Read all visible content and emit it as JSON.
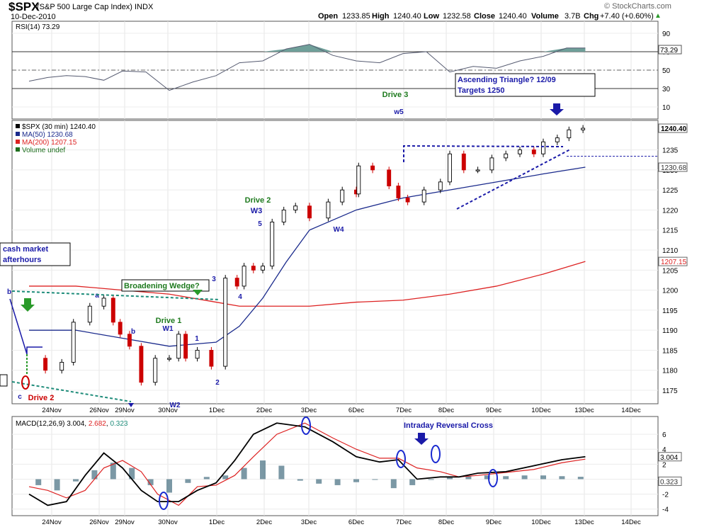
{
  "header": {
    "symbol": "$SPX",
    "description": "(S&P 500 Large Cap Index) INDX",
    "date": "10-Dec-2010",
    "open_label": "Open",
    "open_value": "1233.85",
    "high_label": "High",
    "high_value": "1240.40",
    "low_label": "Low",
    "low_value": "1232.58",
    "close_label": "Close",
    "close_value": "1240.40",
    "volume_label": "Volume",
    "volume_value": "3.7B",
    "chg_label": "Chg",
    "chg_value": "+7.40 (+0.60%)",
    "chg_arrow": "▲",
    "logo": "© StockCharts.com"
  },
  "colors": {
    "price_up": "#000000",
    "price_down": "#cc0000",
    "ma50": "#1a2a8c",
    "ma200": "#dd2222",
    "trendline_green": "#1e8c7a",
    "annotation_blue": "#1a1aa8",
    "annotation_green": "#1e7a1e",
    "annotation_red": "#cc0000",
    "rsi_fill": "#6f9f99",
    "macd_line": "#000000",
    "signal_line": "#dd2222",
    "histogram": "#5a7e8e",
    "resistance_line": "#1a1aa8"
  },
  "chart_data": [
    {
      "type": "line",
      "title": "RSI(14) 73.29",
      "indicator": "RSI(14)",
      "last_value": 73.29,
      "ylim": [
        0,
        100
      ],
      "y_ticks": [
        10,
        30,
        50,
        70,
        90
      ],
      "reference_lines": [
        30,
        50,
        70
      ],
      "x_labels": [
        "24Nov",
        "26Nov",
        "29Nov",
        "30Nov",
        "1Dec",
        "2Dec",
        "3Dec",
        "6Dec",
        "7Dec",
        "8Dec",
        "9Dec",
        "10Dec",
        "13Dec",
        "14Dec"
      ],
      "x": [
        0,
        0.4,
        0.8,
        1.2,
        1.6,
        2.0,
        2.5,
        3.0,
        3.5,
        4.0,
        4.5,
        5.0,
        5.5,
        6.0,
        6.5,
        7.0,
        7.5,
        8.0,
        8.5,
        9.0,
        9.5,
        10.0,
        10.5,
        11.0,
        11.5,
        11.9
      ],
      "values": [
        38,
        42,
        44,
        43,
        39,
        49,
        48,
        28,
        37,
        44,
        58,
        60,
        73,
        78,
        66,
        60,
        58,
        68,
        70,
        48,
        54,
        52,
        60,
        65,
        74,
        74
      ],
      "overbought_fill_above": 70
    },
    {
      "type": "line",
      "title": "$SPX (30 min) 1240.40",
      "legend": [
        "$SPX (30 min) 1240.40",
        "MA(50) 1230.68",
        "MA(200) 1207.15",
        "Volume undef"
      ],
      "ylim": [
        1172,
        1242
      ],
      "y_ticks": [
        1175,
        1180,
        1185,
        1190,
        1195,
        1200,
        1205,
        1210,
        1215,
        1220,
        1225,
        1230,
        1235
      ],
      "x_labels": [
        "24Nov",
        "26Nov",
        "29Nov",
        "30Nov",
        "1Dec",
        "2Dec",
        "3Dec",
        "6Dec",
        "7Dec",
        "8Dec",
        "9Dec",
        "10Dec",
        "13Dec",
        "14Dec"
      ],
      "last_price_label": "1240.40",
      "ma50_label": "1230.68",
      "ma200_label": "1207.15",
      "price_series": {
        "x": [
          0,
          0.35,
          0.7,
          0.95,
          1.3,
          1.6,
          1.8,
          1.95,
          2.15,
          2.4,
          2.7,
          3.0,
          3.2,
          3.35,
          3.6,
          3.9,
          4.2,
          4.45,
          4.6,
          4.8,
          5.0,
          5.2,
          5.45,
          5.7,
          6.0,
          6.4,
          6.7,
          7.0,
          7.05,
          7.35,
          7.7,
          7.9,
          8.1,
          8.45,
          8.8,
          9.0,
          9.3,
          9.6,
          9.9,
          10.2,
          10.5,
          10.8,
          11.0,
          11.3,
          11.55,
          11.85
        ],
        "values": [
          1183,
          1180,
          1182,
          1192,
          1196,
          1198,
          1192,
          1189,
          1186,
          1177,
          1183,
          1183,
          1189,
          1183,
          1185,
          1181,
          1203,
          1201,
          1206,
          1205,
          1206,
          1217,
          1220,
          1221,
          1218,
          1222,
          1225,
          1224,
          1231,
          1230,
          1226,
          1223,
          1222,
          1225,
          1227,
          1234,
          1230,
          1230,
          1233,
          1234,
          1235,
          1234,
          1237,
          1238,
          1240,
          1240.4
        ]
      },
      "ma50": {
        "x": [
          0,
          1,
          2,
          3,
          4,
          4.5,
          5,
          5.5,
          6,
          7,
          8,
          9,
          10,
          11,
          11.9
        ],
        "values": [
          1190,
          1190,
          1188,
          1186,
          1187,
          1191,
          1198,
          1207,
          1215,
          1220,
          1223,
          1225,
          1227,
          1229,
          1230.68
        ]
      },
      "ma200": {
        "x": [
          0,
          1,
          2,
          3,
          4,
          4.5,
          5,
          6,
          7,
          8,
          9,
          10,
          11,
          11.9
        ],
        "values": [
          1201,
          1201,
          1200,
          1199,
          1197,
          1196,
          1196,
          1196,
          1197,
          1197.5,
          1199,
          1201,
          1204,
          1207.15
        ]
      },
      "annotations": [
        "Drive 3",
        "w5",
        "Drive 2",
        "W3",
        "5",
        "W4",
        "Drive 1",
        "W1",
        "b",
        "1",
        "2",
        "3",
        "4",
        "W2",
        "a",
        "b",
        "c",
        "Drive 2"
      ],
      "callouts": [
        {
          "text": "Ascending Triangle? 12/09"
        },
        {
          "text": "Targets 1250"
        },
        {
          "text": "cash market"
        },
        {
          "text": "afterhours"
        },
        {
          "text": "Broadening Wedge?"
        }
      ]
    },
    {
      "type": "line",
      "title": "MACD(12,26,9) 3.004, 2.682, 0.323",
      "indicator": "MACD(12,26,9)",
      "macd_value": 3.004,
      "signal_value": 2.682,
      "histogram_value": 0.323,
      "ylim": [
        -4.5,
        8
      ],
      "y_ticks": [
        -4,
        -2,
        0,
        2,
        4,
        6
      ],
      "annotation": "Intraday Reversal Cross",
      "x_labels": [
        "24Nov",
        "26Nov",
        "29Nov",
        "30Nov",
        "1Dec",
        "2Dec",
        "3Dec",
        "6Dec",
        "7Dec",
        "8Dec",
        "9Dec",
        "10Dec",
        "13Dec",
        "14Dec"
      ],
      "x": [
        0,
        0.4,
        0.8,
        1.2,
        1.6,
        2.0,
        2.4,
        2.75,
        3.2,
        3.6,
        4.0,
        4.4,
        4.8,
        5.3,
        5.9,
        6.5,
        7.0,
        7.5,
        7.9,
        8.3,
        8.8,
        9.2,
        9.6,
        10.2,
        10.8,
        11.4,
        11.9
      ],
      "macd": [
        -2.0,
        -3.5,
        -3.0,
        0.5,
        3.5,
        1.5,
        -1.5,
        -3.0,
        -3.0,
        -1.5,
        -0.5,
        2.5,
        6.0,
        7.5,
        7.0,
        5.0,
        3.0,
        2.3,
        2.6,
        0.0,
        0.3,
        0.3,
        0.8,
        1.0,
        1.8,
        2.6,
        3.004
      ],
      "signal": [
        -1.0,
        -1.5,
        -2.5,
        -1.5,
        1.5,
        2.5,
        1.0,
        -2.0,
        -3.5,
        -1.0,
        -0.8,
        0.5,
        3.0,
        6.0,
        7.5,
        5.5,
        4.0,
        2.8,
        2.8,
        1.5,
        1.0,
        0.3,
        0.5,
        0.9,
        1.3,
        2.2,
        2.682
      ],
      "histogram_x": [
        0.2,
        0.6,
        1.0,
        1.4,
        1.8,
        2.2,
        2.6,
        3.0,
        3.4,
        3.8,
        4.2,
        4.6,
        5.0,
        5.4,
        5.8,
        6.2,
        6.6,
        7.0,
        7.4,
        7.8,
        8.2,
        8.6,
        9.0,
        9.4,
        9.8,
        10.2,
        10.6,
        11.0,
        11.4,
        11.8
      ],
      "histogram": [
        -0.8,
        -1.5,
        -0.3,
        1.2,
        2.2,
        1.5,
        -0.8,
        -1.8,
        -0.5,
        0.3,
        0.5,
        1.5,
        2.5,
        1.8,
        -0.2,
        -0.6,
        -0.8,
        -0.4,
        0.0,
        -1.2,
        -0.8,
        -0.1,
        0.3,
        0.4,
        0.5,
        0.4,
        0.5,
        0.5,
        0.4,
        0.32
      ]
    }
  ]
}
